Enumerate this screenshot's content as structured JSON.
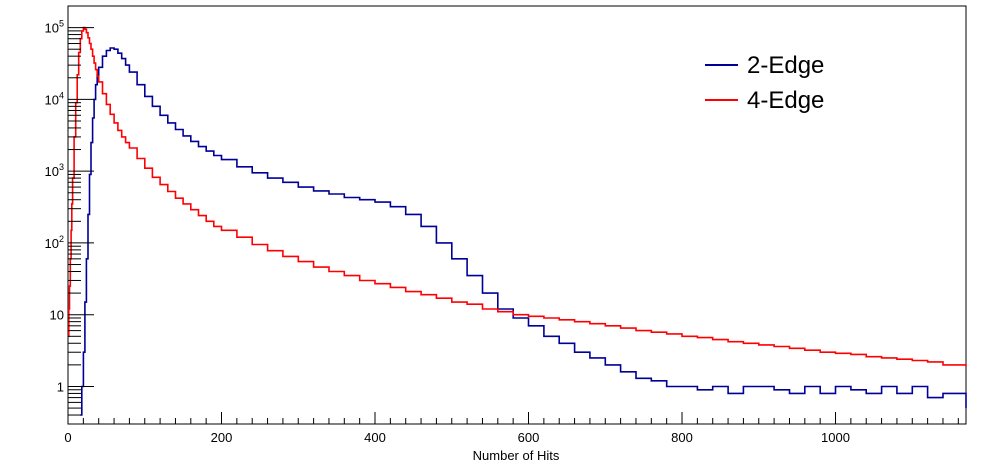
{
  "chart_data": {
    "type": "line",
    "title": "",
    "xlabel": "Number of Hits",
    "ylabel": "",
    "xlim": [
      0,
      1170
    ],
    "ylim": [
      0.3,
      200000
    ],
    "yscale": "log",
    "grid": false,
    "legend_position": "top-right",
    "x_ticks": [
      {
        "value": 0,
        "label": "0"
      },
      {
        "value": 200,
        "label": "200"
      },
      {
        "value": 400,
        "label": "400"
      },
      {
        "value": 600,
        "label": "600"
      },
      {
        "value": 800,
        "label": "800"
      },
      {
        "value": 1000,
        "label": "1000"
      }
    ],
    "y_ticks": [
      {
        "value": 1,
        "label": "1"
      },
      {
        "value": 10,
        "label": "10"
      },
      {
        "value": 100,
        "label": "10",
        "exp": "2"
      },
      {
        "value": 1000,
        "label": "10",
        "exp": "3"
      },
      {
        "value": 10000,
        "label": "10",
        "exp": "4"
      },
      {
        "value": 100000,
        "label": "10",
        "exp": "5"
      }
    ],
    "series": [
      {
        "name": "2-Edge",
        "color": "#000099",
        "x": [
          16,
          18,
          20,
          22,
          24,
          26,
          28,
          30,
          32,
          34,
          36,
          38,
          40,
          45,
          50,
          55,
          60,
          65,
          70,
          75,
          80,
          90,
          100,
          110,
          120,
          130,
          140,
          150,
          160,
          170,
          180,
          190,
          200,
          220,
          240,
          260,
          280,
          300,
          320,
          340,
          360,
          380,
          400,
          420,
          440,
          460,
          480,
          500,
          520,
          540,
          560,
          580,
          600,
          620,
          640,
          660,
          680,
          700,
          720,
          740,
          760,
          780,
          800,
          820,
          840,
          860,
          880,
          900,
          920,
          940,
          960,
          980,
          1000,
          1020,
          1040,
          1060,
          1080,
          1100,
          1120,
          1140,
          1160,
          1170
        ],
        "values": [
          0.4,
          1,
          3,
          15,
          60,
          250,
          900,
          2500,
          5500,
          10000,
          16000,
          22000,
          28000,
          40000,
          48000,
          52000,
          50000,
          44000,
          37000,
          30000,
          24000,
          16000,
          11000,
          8000,
          6000,
          4700,
          3800,
          3100,
          2600,
          2200,
          1900,
          1650,
          1450,
          1150,
          950,
          800,
          700,
          600,
          530,
          480,
          430,
          400,
          370,
          320,
          250,
          170,
          100,
          60,
          35,
          20,
          12,
          9,
          7,
          5,
          4,
          3,
          2.5,
          2,
          1.6,
          1.3,
          1.2,
          1,
          1,
          0.9,
          1,
          0.8,
          1,
          1,
          0.9,
          0.8,
          1,
          0.8,
          1,
          0.9,
          0.8,
          1,
          0.8,
          1,
          0.7,
          0.8,
          0.8,
          0.5
        ]
      },
      {
        "name": "4-Edge",
        "color": "#ff0000",
        "x": [
          0,
          1,
          2,
          3,
          4,
          5,
          6,
          8,
          10,
          12,
          14,
          16,
          18,
          20,
          22,
          24,
          26,
          28,
          30,
          32,
          34,
          36,
          38,
          40,
          45,
          50,
          55,
          60,
          65,
          70,
          75,
          80,
          90,
          100,
          110,
          120,
          130,
          140,
          150,
          160,
          170,
          180,
          190,
          200,
          220,
          240,
          260,
          280,
          300,
          320,
          340,
          360,
          380,
          400,
          420,
          440,
          460,
          480,
          500,
          520,
          540,
          560,
          580,
          600,
          620,
          640,
          660,
          680,
          700,
          720,
          740,
          760,
          780,
          800,
          820,
          840,
          860,
          880,
          900,
          920,
          940,
          960,
          980,
          1000,
          1020,
          1040,
          1060,
          1080,
          1100,
          1120,
          1140,
          1160,
          1170
        ],
        "values": [
          5,
          12,
          25,
          60,
          150,
          350,
          800,
          3000,
          9000,
          22000,
          45000,
          70000,
          90000,
          100000,
          95000,
          85000,
          72000,
          60000,
          50000,
          40000,
          32000,
          26000,
          21000,
          17500,
          12000,
          8500,
          6200,
          4700,
          3700,
          3000,
          2500,
          2100,
          1500,
          1100,
          820,
          650,
          520,
          420,
          350,
          290,
          240,
          200,
          170,
          150,
          120,
          95,
          78,
          65,
          55,
          46,
          40,
          35,
          30,
          27,
          24,
          21,
          19,
          17,
          15,
          14,
          12,
          11,
          10,
          9.5,
          9,
          8.5,
          8,
          7.5,
          7,
          6.5,
          6,
          5.7,
          5.4,
          5,
          4.8,
          4.5,
          4.2,
          4,
          3.8,
          3.6,
          3.4,
          3.2,
          3,
          2.9,
          2.8,
          2.6,
          2.5,
          2.4,
          2.3,
          2.2,
          2,
          2,
          1.9
        ]
      }
    ]
  }
}
